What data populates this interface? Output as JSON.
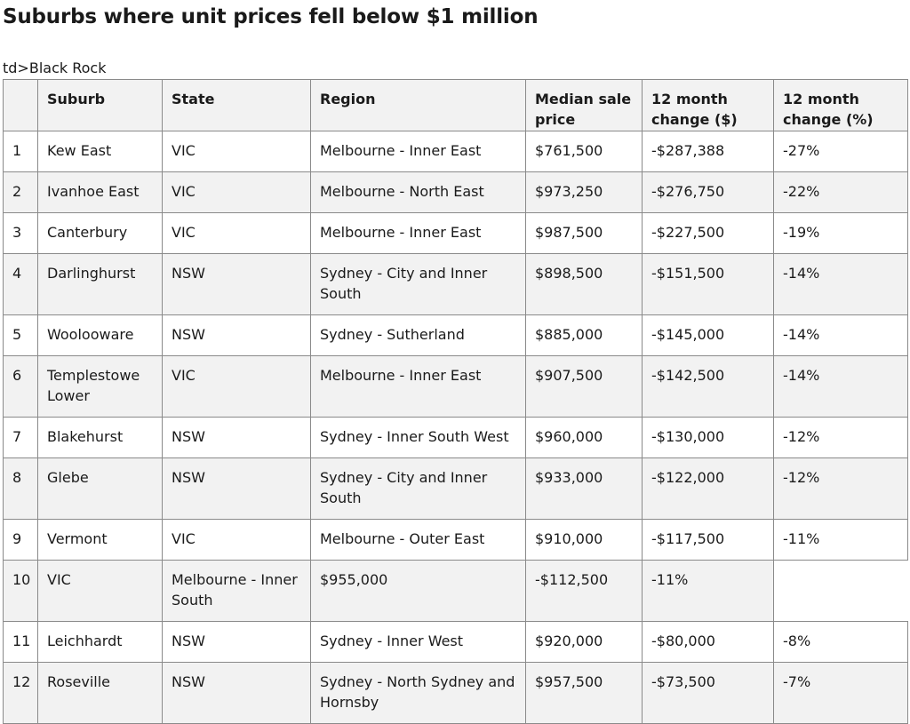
{
  "title": "Suburbs where unit prices fell below $1 million",
  "stray_text": "td>Black Rock",
  "table": {
    "headers": [
      "",
      "Suburb",
      "State",
      "Region",
      "Median sale price",
      "12 month change ($)",
      "12 month change (%)"
    ],
    "rows": [
      [
        "1",
        "Kew East",
        "VIC",
        "Melbourne - Inner East",
        "$761,500",
        "-$287,388",
        "-27%"
      ],
      [
        "2",
        "Ivanhoe East",
        "VIC",
        "Melbourne - North East",
        "$973,250",
        "-$276,750",
        "-22%"
      ],
      [
        "3",
        "Canterbury",
        "VIC",
        "Melbourne - Inner East",
        "$987,500",
        "-$227,500",
        "-19%"
      ],
      [
        "4",
        "Darlinghurst",
        "NSW",
        "Sydney - City and Inner South",
        "$898,500",
        "-$151,500",
        "-14%"
      ],
      [
        "5",
        "Woolooware",
        "NSW",
        "Sydney - Sutherland",
        "$885,000",
        "-$145,000",
        "-14%"
      ],
      [
        "6",
        "Templestowe Lower",
        "VIC",
        "Melbourne - Inner East",
        "$907,500",
        "-$142,500",
        "-14%"
      ],
      [
        "7",
        "Blakehurst",
        "NSW",
        "Sydney - Inner South West",
        "$960,000",
        "-$130,000",
        "-12%"
      ],
      [
        "8",
        "Glebe",
        "NSW",
        "Sydney - City and Inner South",
        "$933,000",
        "-$122,000",
        "-12%"
      ],
      [
        "9",
        "Vermont",
        "VIC",
        "Melbourne - Outer East",
        "$910,000",
        "-$117,500",
        "-11%"
      ],
      [
        "10",
        "VIC",
        "Melbourne - Inner South",
        "$955,000",
        "-$112,500",
        "-11%",
        ""
      ],
      [
        "11",
        "Leichhardt",
        "NSW",
        "Sydney - Inner West",
        "$920,000",
        "-$80,000",
        "-8%"
      ],
      [
        "12",
        "Roseville",
        "NSW",
        "Sydney - North Sydney and Hornsby",
        "$957,500",
        "-$73,500",
        "-7%"
      ]
    ]
  }
}
